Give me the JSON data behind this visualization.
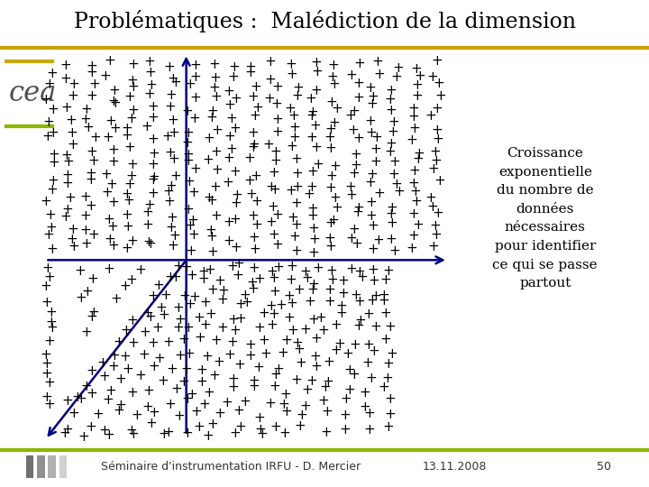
{
  "title": "Problématiques :  Malédiction de la dimension",
  "title_fontsize": 17,
  "bg_color": "#f0f0f0",
  "white_color": "#ffffff",
  "title_line_color": "#c8a000",
  "bottom_line_color": "#8db600",
  "annotation_text": "Croissance\nexponentielle\ndu nombre de\ndonnées\nnécessaires\npour identifier\nce qui se passe\npartout",
  "footer_text": "Séminaire d'instrumentation IRFU - D. Mercier",
  "footer_date": "13.11.2008",
  "footer_page": "50",
  "arrow_color": "#000080",
  "plus_color": "#000000",
  "cea_gold": "#c8a800",
  "cea_green": "#8db600",
  "annotation_fontsize": 11,
  "footer_fontsize": 9,
  "plus_fontsize": 11
}
